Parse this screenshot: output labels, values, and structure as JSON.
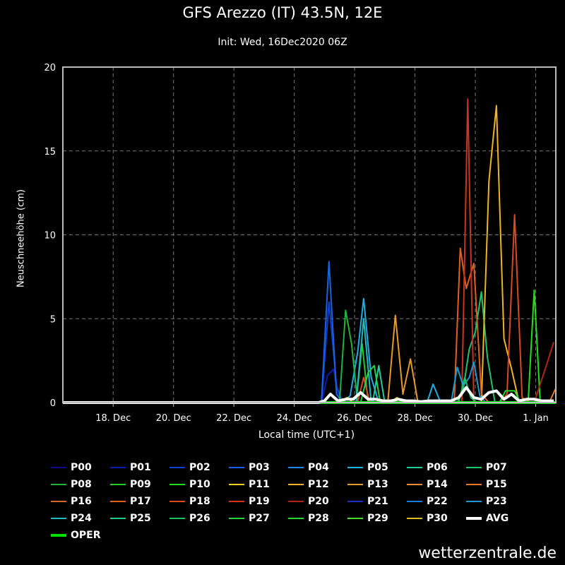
{
  "chart_data": {
    "type": "line",
    "title": "GFS Arezzo (IT) 43.5N, 12E",
    "subtitle": "Init: Wed, 16Dec2020 06Z",
    "xlabel": "Local time (UTC+1)",
    "ylabel": "Neuschneehöhe (cm)",
    "x_unit": "days_from_16Dec2020",
    "xlim": [
      0.333,
      16.667
    ],
    "ylim": [
      0,
      20
    ],
    "y_ticks": [
      0,
      5,
      10,
      15,
      20
    ],
    "x_ticks": [
      {
        "pos": 2,
        "label": "18. Dec"
      },
      {
        "pos": 4,
        "label": "20. Dec"
      },
      {
        "pos": 6,
        "label": "22. Dec"
      },
      {
        "pos": 8,
        "label": "24. Dec"
      },
      {
        "pos": 10,
        "label": "26. Dec"
      },
      {
        "pos": 12,
        "label": "28. Dec"
      },
      {
        "pos": 14,
        "label": "30. Dec"
      },
      {
        "pos": 16,
        "label": "1. Jan"
      }
    ],
    "grid": true,
    "legend_position": "bottom",
    "series": [
      {
        "name": "P00",
        "color": "#080a8a",
        "width": 2,
        "points": [
          [
            0.33,
            0
          ],
          [
            16.67,
            0
          ]
        ]
      },
      {
        "name": "P01",
        "color": "#0c1bb0",
        "width": 2,
        "points": [
          [
            0.33,
            0
          ],
          [
            8.9,
            0
          ],
          [
            9.1,
            1.6
          ],
          [
            9.3,
            2.0
          ],
          [
            9.5,
            0
          ],
          [
            16.67,
            0
          ]
        ]
      },
      {
        "name": "P02",
        "color": "#1040d0",
        "width": 2,
        "points": [
          [
            0.33,
            0
          ],
          [
            8.9,
            0
          ],
          [
            9.15,
            6.0
          ],
          [
            9.4,
            1.0
          ],
          [
            9.6,
            0
          ],
          [
            16.67,
            0
          ]
        ]
      },
      {
        "name": "P03",
        "color": "#1a62e0",
        "width": 2,
        "points": [
          [
            0.33,
            0
          ],
          [
            8.9,
            0
          ],
          [
            9.15,
            8.4
          ],
          [
            9.4,
            0.5
          ],
          [
            9.6,
            0
          ],
          [
            16.67,
            0
          ]
        ]
      },
      {
        "name": "P04",
        "color": "#1f88e8",
        "width": 2,
        "points": [
          [
            0.33,
            0
          ],
          [
            16.67,
            0
          ]
        ]
      },
      {
        "name": "P05",
        "color": "#21aee0",
        "width": 2,
        "points": [
          [
            0.33,
            0
          ],
          [
            9.6,
            0
          ],
          [
            9.85,
            0.4
          ],
          [
            10.1,
            3.0
          ],
          [
            10.3,
            6.2
          ],
          [
            10.55,
            1.5
          ],
          [
            10.8,
            0
          ],
          [
            12.4,
            0
          ],
          [
            12.6,
            1.1
          ],
          [
            12.85,
            0
          ],
          [
            16.67,
            0
          ]
        ]
      },
      {
        "name": "P06",
        "color": "#1fcc9a",
        "width": 2,
        "points": [
          [
            0.33,
            0
          ],
          [
            10.6,
            0
          ],
          [
            10.8,
            2.2
          ],
          [
            11.0,
            0
          ],
          [
            16.67,
            0
          ]
        ]
      },
      {
        "name": "P07",
        "color": "#1ec46a",
        "width": 2,
        "points": [
          [
            0.33,
            0
          ],
          [
            13.4,
            0
          ],
          [
            13.6,
            0.8
          ],
          [
            13.8,
            3.2
          ],
          [
            14.0,
            4.2
          ],
          [
            14.2,
            6.6
          ],
          [
            14.4,
            2.7
          ],
          [
            14.65,
            0
          ],
          [
            16.67,
            0
          ]
        ]
      },
      {
        "name": "P08",
        "color": "#20b43a",
        "width": 2,
        "points": [
          [
            0.33,
            0
          ],
          [
            9.5,
            0
          ],
          [
            9.7,
            5.5
          ],
          [
            9.9,
            3.5
          ],
          [
            10.1,
            0
          ],
          [
            16.67,
            0
          ]
        ]
      },
      {
        "name": "P09",
        "color": "#1fcc28",
        "width": 2,
        "points": [
          [
            0.33,
            0
          ],
          [
            10.05,
            0
          ],
          [
            10.25,
            3.5
          ],
          [
            10.45,
            0
          ],
          [
            16.67,
            0
          ]
        ]
      },
      {
        "name": "P10",
        "color": "#22e018",
        "width": 2,
        "points": [
          [
            0.33,
            0
          ],
          [
            15.75,
            0
          ],
          [
            15.95,
            6.7
          ],
          [
            16.15,
            0
          ],
          [
            16.67,
            0
          ]
        ]
      },
      {
        "name": "P11",
        "color": "#e8d020",
        "width": 2,
        "points": [
          [
            0.33,
            0
          ],
          [
            16.67,
            0
          ]
        ]
      },
      {
        "name": "P12",
        "color": "#f0b420",
        "width": 2,
        "points": [
          [
            0.33,
            0
          ],
          [
            14.2,
            0
          ],
          [
            14.45,
            13.2
          ],
          [
            14.7,
            17.7
          ],
          [
            14.95,
            3.8
          ],
          [
            15.2,
            2.0
          ],
          [
            15.45,
            0
          ],
          [
            16.67,
            0
          ]
        ]
      },
      {
        "name": "P13",
        "color": "#e89a28",
        "width": 2,
        "points": [
          [
            0.33,
            0
          ],
          [
            11.1,
            0
          ],
          [
            11.35,
            5.2
          ],
          [
            11.6,
            0.5
          ],
          [
            11.85,
            2.6
          ],
          [
            12.1,
            0
          ],
          [
            16.67,
            0
          ]
        ]
      },
      {
        "name": "P14",
        "color": "#f08c30",
        "width": 2,
        "points": [
          [
            0.33,
            0
          ],
          [
            16.67,
            0
          ]
        ]
      },
      {
        "name": "P15",
        "color": "#e87828",
        "width": 2,
        "points": [
          [
            0.33,
            0
          ],
          [
            16.45,
            0
          ],
          [
            16.65,
            0.8
          ]
        ]
      },
      {
        "name": "P16",
        "color": "#d06a2a",
        "width": 2,
        "points": [
          [
            0.33,
            0
          ],
          [
            16.67,
            0
          ]
        ]
      },
      {
        "name": "P17",
        "color": "#e06020",
        "width": 2,
        "points": [
          [
            0.33,
            0
          ],
          [
            13.3,
            0
          ],
          [
            13.5,
            9.2
          ],
          [
            13.7,
            6.8
          ],
          [
            13.95,
            8.3
          ],
          [
            14.2,
            0.5
          ],
          [
            14.45,
            0
          ],
          [
            16.67,
            0
          ]
        ]
      },
      {
        "name": "P18",
        "color": "#d84a20",
        "width": 2,
        "points": [
          [
            0.33,
            0
          ],
          [
            10.1,
            0
          ],
          [
            10.3,
            1.5
          ],
          [
            10.5,
            0
          ],
          [
            14.8,
            0
          ],
          [
            15.05,
            0.5
          ],
          [
            15.3,
            11.2
          ],
          [
            15.55,
            0.3
          ],
          [
            15.8,
            0
          ],
          [
            16.67,
            0
          ]
        ]
      },
      {
        "name": "P19",
        "color": "#c83520",
        "width": 2,
        "points": [
          [
            0.33,
            0
          ],
          [
            13.55,
            0
          ],
          [
            13.75,
            18.1
          ],
          [
            13.95,
            0
          ],
          [
            16.67,
            0
          ]
        ]
      },
      {
        "name": "P20",
        "color": "#b02418",
        "width": 2,
        "points": [
          [
            0.33,
            0
          ],
          [
            15.95,
            0
          ],
          [
            16.35,
            2.2
          ],
          [
            16.6,
            3.6
          ]
        ]
      },
      {
        "name": "P21",
        "color": "#1a30c0",
        "width": 2,
        "points": [
          [
            0.33,
            0
          ],
          [
            16.67,
            0
          ]
        ]
      },
      {
        "name": "P22",
        "color": "#1a7ae0",
        "width": 2,
        "points": [
          [
            0.33,
            0
          ],
          [
            16.67,
            0
          ]
        ]
      },
      {
        "name": "P23",
        "color": "#1c9ad0",
        "width": 2,
        "points": [
          [
            0.33,
            0
          ],
          [
            13.2,
            0
          ],
          [
            13.4,
            2.1
          ],
          [
            13.6,
            1.0
          ],
          [
            13.8,
            1.5
          ],
          [
            13.95,
            2.4
          ],
          [
            14.15,
            0.4
          ],
          [
            14.35,
            0
          ],
          [
            16.67,
            0
          ]
        ]
      },
      {
        "name": "P24",
        "color": "#1fbcc0",
        "width": 2,
        "points": [
          [
            0.33,
            0
          ],
          [
            10.05,
            0
          ],
          [
            10.3,
            5.0
          ],
          [
            10.55,
            0
          ],
          [
            16.67,
            0
          ]
        ]
      },
      {
        "name": "P25",
        "color": "#20c890",
        "width": 2,
        "points": [
          [
            0.33,
            0
          ],
          [
            16.67,
            0
          ]
        ]
      },
      {
        "name": "P26",
        "color": "#20c060",
        "width": 2,
        "points": [
          [
            0.33,
            0
          ],
          [
            13.45,
            0
          ],
          [
            13.65,
            1.5
          ],
          [
            13.85,
            0.3
          ],
          [
            14.05,
            0
          ],
          [
            16.67,
            0
          ]
        ]
      },
      {
        "name": "P27",
        "color": "#2ad040",
        "width": 2,
        "points": [
          [
            0.33,
            0
          ],
          [
            10.2,
            0
          ],
          [
            10.45,
            1.8
          ],
          [
            10.65,
            2.2
          ],
          [
            10.85,
            0
          ],
          [
            16.67,
            0
          ]
        ]
      },
      {
        "name": "P28",
        "color": "#22d830",
        "width": 2,
        "points": [
          [
            0.33,
            0
          ],
          [
            14.8,
            0
          ],
          [
            15.0,
            0.7
          ],
          [
            15.3,
            0.7
          ],
          [
            15.5,
            0
          ],
          [
            16.67,
            0
          ]
        ]
      },
      {
        "name": "P29",
        "color": "#44dd20",
        "width": 2,
        "points": [
          [
            0.33,
            0
          ],
          [
            16.67,
            0
          ]
        ]
      },
      {
        "name": "P30",
        "color": "#d8c020",
        "width": 2,
        "points": [
          [
            0.33,
            0
          ],
          [
            9.55,
            0
          ],
          [
            9.75,
            0.3
          ],
          [
            9.95,
            0
          ],
          [
            11.2,
            0
          ],
          [
            11.4,
            0.3
          ],
          [
            11.6,
            0
          ],
          [
            16.67,
            0
          ]
        ]
      },
      {
        "name": "AVG",
        "color": "#ffffff",
        "width": 4,
        "points": [
          [
            0.33,
            0
          ],
          [
            8.8,
            0
          ],
          [
            9.0,
            0.1
          ],
          [
            9.2,
            0.5
          ],
          [
            9.45,
            0.1
          ],
          [
            9.7,
            0.2
          ],
          [
            9.95,
            0.2
          ],
          [
            10.2,
            0.6
          ],
          [
            10.45,
            0.2
          ],
          [
            10.7,
            0.2
          ],
          [
            10.95,
            0.1
          ],
          [
            11.2,
            0.1
          ],
          [
            11.45,
            0.2
          ],
          [
            11.7,
            0.1
          ],
          [
            11.95,
            0.1
          ],
          [
            12.2,
            0.05
          ],
          [
            12.45,
            0.1
          ],
          [
            12.7,
            0.1
          ],
          [
            12.95,
            0.1
          ],
          [
            13.2,
            0.1
          ],
          [
            13.45,
            0.3
          ],
          [
            13.7,
            0.9
          ],
          [
            13.95,
            0.3
          ],
          [
            14.2,
            0.2
          ],
          [
            14.45,
            0.6
          ],
          [
            14.7,
            0.7
          ],
          [
            14.95,
            0.2
          ],
          [
            15.2,
            0.5
          ],
          [
            15.45,
            0.1
          ],
          [
            15.7,
            0.2
          ],
          [
            15.95,
            0.2
          ],
          [
            16.2,
            0.1
          ],
          [
            16.6,
            0.1
          ]
        ]
      },
      {
        "name": "OPER",
        "color": "#00e000",
        "width": 4,
        "points": [
          [
            0.33,
            0
          ],
          [
            16.67,
            0
          ]
        ]
      }
    ]
  },
  "credit": "wetterzentrale.de"
}
